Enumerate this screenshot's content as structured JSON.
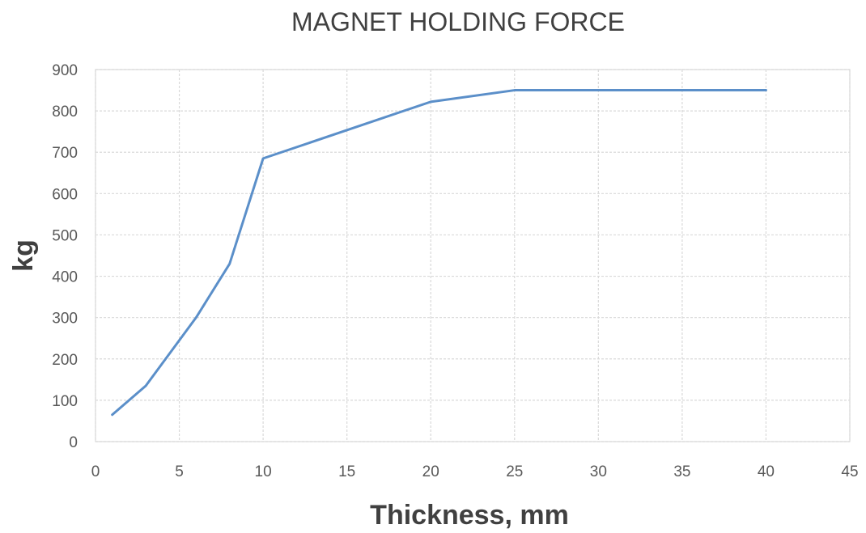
{
  "chart_data": {
    "type": "line",
    "title": "MAGNET HOLDING FORCE",
    "xlabel": "Thickness, mm",
    "ylabel": "kg",
    "xlim": [
      0,
      45
    ],
    "ylim": [
      0,
      900
    ],
    "xticks": [
      0,
      5,
      10,
      15,
      20,
      25,
      30,
      35,
      40,
      45
    ],
    "yticks": [
      0,
      100,
      200,
      300,
      400,
      500,
      600,
      700,
      800,
      900
    ],
    "grid": true,
    "legend": "none",
    "series": [
      {
        "color": "#5b8fc9",
        "x": [
          1,
          3,
          6,
          8,
          10,
          20,
          25,
          30,
          35,
          40
        ],
        "y": [
          65,
          135,
          300,
          430,
          685,
          822,
          850,
          850,
          850,
          850
        ]
      }
    ]
  }
}
